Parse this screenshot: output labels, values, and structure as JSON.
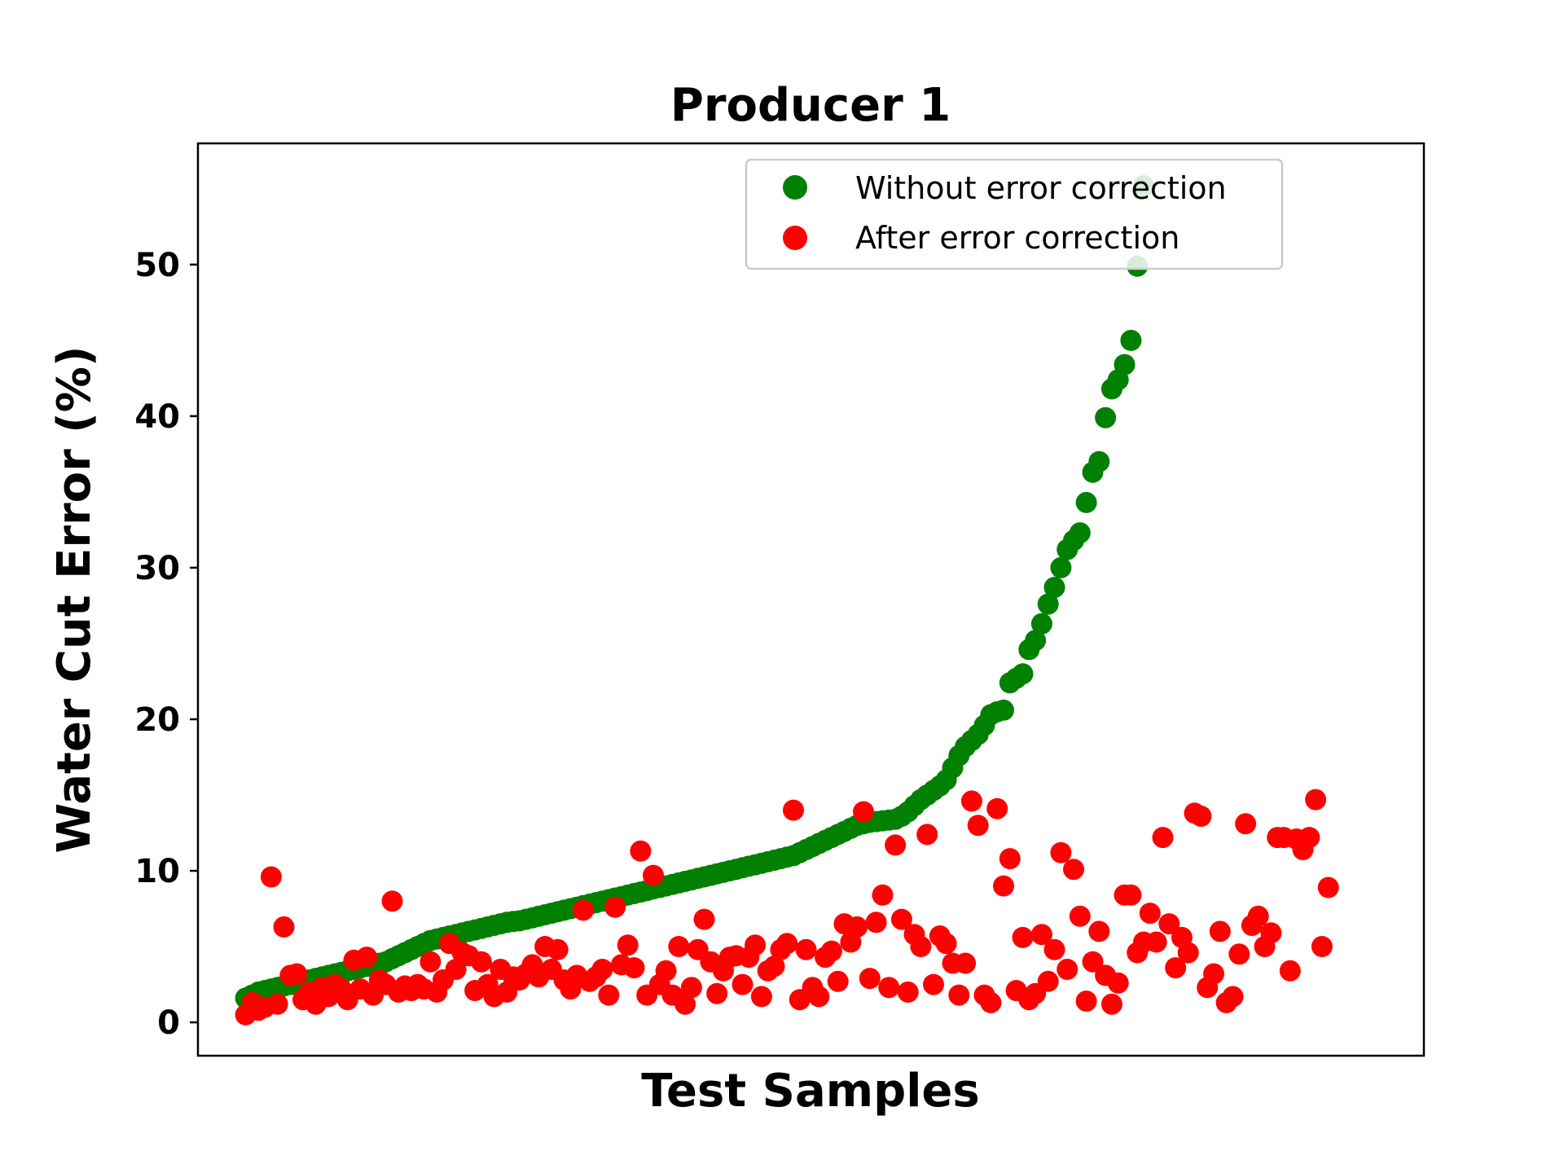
{
  "chart_data": {
    "type": "scatter",
    "title": "Producer 1",
    "xlabel": "Test Samples",
    "ylabel": "Water Cut Error (%)",
    "ylim": [
      -2.2,
      58
    ],
    "xlim": [
      -7.5,
      185
    ],
    "yticks": [
      0,
      10,
      20,
      30,
      40,
      50
    ],
    "xticks": [],
    "grid": false,
    "legend": "upper-right",
    "series": [
      {
        "name": "Without error correction",
        "color": "#008000",
        "y": [
          1.6,
          1.8,
          2.0,
          2.1,
          2.2,
          2.3,
          2.4,
          2.5,
          2.6,
          2.7,
          2.8,
          2.9,
          3.0,
          3.1,
          3.2,
          3.3,
          3.4,
          3.5,
          3.6,
          3.7,
          3.8,
          3.9,
          4.0,
          4.2,
          4.4,
          4.6,
          4.8,
          5.0,
          5.2,
          5.4,
          5.5,
          5.6,
          5.7,
          5.8,
          5.9,
          6.0,
          6.1,
          6.2,
          6.3,
          6.4,
          6.5,
          6.6,
          6.65,
          6.7,
          6.8,
          6.9,
          7.0,
          7.1,
          7.2,
          7.3,
          7.4,
          7.5,
          7.6,
          7.7,
          7.8,
          7.9,
          8.0,
          8.1,
          8.2,
          8.3,
          8.4,
          8.5,
          8.6,
          8.7,
          8.8,
          8.9,
          9.0,
          9.1,
          9.2,
          9.3,
          9.4,
          9.5,
          9.6,
          9.7,
          9.8,
          9.9,
          10.0,
          10.1,
          10.2,
          10.3,
          10.4,
          10.5,
          10.6,
          10.7,
          10.8,
          10.9,
          11.0,
          11.2,
          11.4,
          11.6,
          11.8,
          12.0,
          12.2,
          12.4,
          12.6,
          12.8,
          13.0,
          13.1,
          13.2,
          13.25,
          13.3,
          13.35,
          13.4,
          13.6,
          13.9,
          14.3,
          14.7,
          15.0,
          15.3,
          15.6,
          16.0,
          16.8,
          17.6,
          18.2,
          18.6,
          19.0,
          19.6,
          20.3,
          20.5,
          20.6,
          22.4,
          22.7,
          23.0,
          24.6,
          25.2,
          26.3,
          27.6,
          28.7,
          30.0,
          31.2,
          31.8,
          32.3,
          34.3,
          36.3,
          37.0,
          39.9,
          41.8,
          42.4,
          43.4,
          45.0,
          49.9,
          55.2
        ]
      },
      {
        "name": "After error correction",
        "color": "#ff0000",
        "y": [
          0.5,
          1.3,
          0.8,
          1.0,
          9.6,
          1.2,
          6.3,
          3.1,
          3.2,
          1.5,
          2.0,
          1.2,
          2.3,
          1.7,
          2.5,
          2.2,
          1.5,
          4.1,
          2.2,
          4.3,
          1.8,
          2.8,
          2.5,
          8.0,
          2.0,
          2.4,
          2.1,
          2.5,
          2.2,
          4.0,
          2.0,
          2.8,
          5.2,
          3.5,
          4.6,
          4.4,
          2.1,
          4.0,
          2.5,
          1.7,
          3.5,
          2.0,
          3.0,
          2.8,
          3.2,
          3.8,
          3.0,
          5.0,
          3.5,
          4.8,
          2.8,
          2.2,
          3.1,
          7.4,
          2.7,
          3.0,
          3.5,
          1.8,
          7.6,
          3.8,
          5.1,
          3.6,
          11.3,
          1.8,
          9.7,
          2.5,
          3.4,
          1.8,
          5.0,
          1.2,
          2.3,
          4.8,
          6.8,
          4.0,
          1.9,
          3.4,
          4.3,
          4.4,
          2.5,
          4.3,
          5.1,
          1.7,
          3.4,
          3.7,
          4.8,
          5.2,
          14.0,
          1.5,
          4.8,
          2.3,
          1.7,
          4.3,
          4.7,
          2.7,
          6.5,
          5.3,
          6.3,
          13.9,
          2.9,
          6.6,
          8.4,
          2.3,
          11.7,
          6.8,
          2.0,
          5.8,
          5.0,
          12.4,
          2.5,
          5.7,
          5.2,
          3.9,
          1.8,
          3.9,
          14.6,
          13.0,
          1.8,
          1.3,
          14.1,
          9.0,
          10.8,
          2.1,
          5.6,
          1.5,
          1.9,
          5.8,
          2.7,
          4.8,
          11.2,
          3.5,
          10.1,
          7.0,
          1.4,
          4.0,
          6.0,
          3.1,
          1.2,
          2.6,
          8.4,
          8.4,
          4.6,
          5.3,
          7.2,
          5.3,
          12.2,
          6.5,
          3.6,
          5.6,
          4.6,
          13.8,
          13.6,
          2.3,
          3.2,
          6.0,
          1.3,
          1.7,
          4.5,
          13.1,
          6.4,
          7.0,
          5.0,
          5.9,
          12.2,
          12.2,
          3.4,
          12.1,
          11.4,
          12.2,
          14.7,
          5.0,
          8.9
        ]
      }
    ]
  }
}
